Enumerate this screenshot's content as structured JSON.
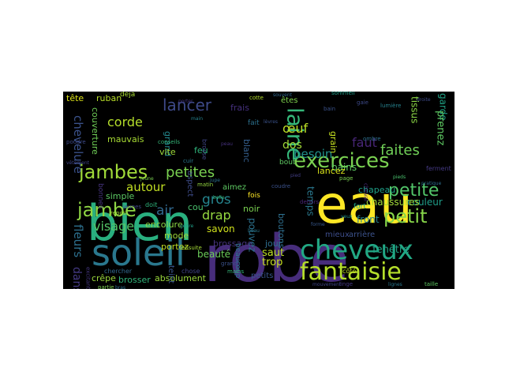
{
  "word_cloud": {
    "background": "#000000",
    "words": [
      {
        "text": "robe",
        "color": "#472d7b"
      },
      {
        "text": "bien",
        "color": "#29af7f"
      },
      {
        "text": "eau",
        "color": "#fde725"
      },
      {
        "text": "soleil",
        "color": "#2a788e"
      },
      {
        "text": "cheveux",
        "color": "#22a884"
      },
      {
        "text": "fantaisie",
        "color": "#b5de2b"
      },
      {
        "text": "exercices",
        "color": "#7ad151"
      },
      {
        "text": "jambes",
        "color": "#a0da39"
      },
      {
        "text": "jambe",
        "color": "#8fd744"
      },
      {
        "text": "petit",
        "color": "#86d549"
      },
      {
        "text": "laine",
        "color": "#35b779"
      },
      {
        "text": "petite",
        "color": "#52c569"
      },
      {
        "text": "lancer",
        "color": "#3e4a89"
      },
      {
        "text": "petites",
        "color": "#7ad151"
      },
      {
        "text": "visage",
        "color": "#54c568"
      },
      {
        "text": "faites",
        "color": "#70cf57"
      },
      {
        "text": "besoin",
        "color": "#21918c"
      },
      {
        "text": "faut",
        "color": "#482677"
      },
      {
        "text": "corde",
        "color": "#b5de2b"
      },
      {
        "text": "autour",
        "color": "#c2df23"
      },
      {
        "text": "gros",
        "color": "#25848e"
      },
      {
        "text": "drap",
        "color": "#95d840"
      },
      {
        "text": "air",
        "color": "#31688e"
      },
      {
        "text": "chevelure",
        "color": "#3b528b"
      },
      {
        "text": "fleurs",
        "color": "#2d708e"
      },
      {
        "text": "danse",
        "color": "#443983"
      },
      {
        "text": "œuf",
        "color": "#bddf26"
      },
      {
        "text": "dos",
        "color": "#a2da37"
      },
      {
        "text": "fenêtre",
        "color": "#20a386"
      },
      {
        "text": "couleur",
        "color": "#1f9e89"
      },
      {
        "text": "chaussures",
        "color": "#a0da39"
      },
      {
        "text": "chapeau",
        "color": "#1fa088"
      },
      {
        "text": "front",
        "color": "#26828e"
      },
      {
        "text": "mieux",
        "color": "#3d4d8a"
      },
      {
        "text": "arrière",
        "color": "#3b528b"
      },
      {
        "text": "pouvez",
        "color": "#2c728e"
      },
      {
        "text": "saut",
        "color": "#bddf26"
      },
      {
        "text": "trop",
        "color": "#c8e020"
      },
      {
        "text": "jour",
        "color": "#2e6e8e"
      },
      {
        "text": "temps",
        "color": "#2a788e"
      },
      {
        "text": "bains",
        "color": "#5ec962"
      },
      {
        "text": "lancez",
        "color": "#d8e219"
      },
      {
        "text": "savon",
        "color": "#d0e11c"
      },
      {
        "text": "noir",
        "color": "#7ad151"
      },
      {
        "text": "beauté",
        "color": "#6ccd5a"
      },
      {
        "text": "brossage",
        "color": "#46337e"
      },
      {
        "text": "absolument",
        "color": "#9bd93c"
      },
      {
        "text": "brosser",
        "color": "#31b57b"
      },
      {
        "text": "crêpe",
        "color": "#9bd93c"
      },
      {
        "text": "petits",
        "color": "#39558c"
      },
      {
        "text": "mode",
        "color": "#9fda3a"
      },
      {
        "text": "portez",
        "color": "#c2df23"
      },
      {
        "text": "encolure",
        "color": "#8bd646"
      },
      {
        "text": "simple",
        "color": "#5cc863"
      },
      {
        "text": "couverture",
        "color": "#70cf57"
      },
      {
        "text": "mauvais",
        "color": "#a8db34"
      },
      {
        "text": "ruban",
        "color": "#b8de29"
      },
      {
        "text": "tête",
        "color": "#dde318"
      },
      {
        "text": "grand",
        "color": "#23888e"
      },
      {
        "text": "vite",
        "color": "#9fda3a"
      },
      {
        "text": "feu",
        "color": "#2fb47c"
      },
      {
        "text": "blanc",
        "color": "#355f8d"
      },
      {
        "text": "aimez",
        "color": "#5ec962"
      },
      {
        "text": "garde",
        "color": "#20a386"
      },
      {
        "text": "tissus",
        "color": "#8bd646"
      },
      {
        "text": "prenez",
        "color": "#5ec962"
      },
      {
        "text": "êtes",
        "color": "#7fd34e"
      },
      {
        "text": "frais",
        "color": "#46307e"
      },
      {
        "text": "grain",
        "color": "#c5e021"
      },
      {
        "text": "boutons",
        "color": "#2e6f8e"
      },
      {
        "text": "teint",
        "color": "#3a548c"
      },
      {
        "text": "aspect",
        "color": "#3e4c8a"
      },
      {
        "text": "cou",
        "color": "#4ac16d"
      },
      {
        "text": "bonnes",
        "color": "#46337e"
      },
      {
        "text": "beaucoup",
        "color": "#2a768e"
      },
      {
        "text": "déjà",
        "color": "#a8db34"
      },
      {
        "text": "brosse",
        "color": "#404688"
      },
      {
        "text": "fait",
        "color": "#2c718e"
      },
      {
        "text": "fois",
        "color": "#fde725"
      },
      {
        "text": "grands",
        "color": "#3b528b"
      },
      {
        "text": "chose",
        "color": "#414487"
      },
      {
        "text": "dehors",
        "color": "#482475"
      },
      {
        "text": "fort",
        "color": "#1fa088"
      },
      {
        "text": "bout",
        "color": "#5ec962"
      },
      {
        "text": "ferment",
        "color": "#443983"
      },
      {
        "text": "côté",
        "color": "#c2df23"
      },
      {
        "text": "page",
        "color": "#7ad151"
      },
      {
        "text": "gaie",
        "color": "#3e4a89"
      },
      {
        "text": "bain",
        "color": "#3b528b"
      },
      {
        "text": "cuir",
        "color": "#2a788e"
      },
      {
        "text": "doit",
        "color": "#2fb47c"
      },
      {
        "text": "cotte",
        "color": "#b5de2b"
      },
      {
        "text": "chercher",
        "color": "#31688e"
      },
      {
        "text": "excitant",
        "color": "#453781"
      },
      {
        "text": "partie",
        "color": "#7ad151"
      },
      {
        "text": "jeunes",
        "color": "#404688"
      },
      {
        "text": "conseils",
        "color": "#35b779"
      },
      {
        "text": "lumière",
        "color": "#26828e"
      },
      {
        "text": "sommeil",
        "color": "#1f9e89"
      },
      {
        "text": "poudre",
        "color": "#3e4a89"
      },
      {
        "text": "repos",
        "color": "#a0da39"
      },
      {
        "text": "cheval",
        "color": "#482878"
      },
      {
        "text": "ombre",
        "color": "#2d708e"
      },
      {
        "text": "linge",
        "color": "#453781"
      },
      {
        "text": "coudre",
        "color": "#3b528b"
      },
      {
        "text": "ensuite",
        "color": "#a5db36"
      },
      {
        "text": "souvent",
        "color": "#31688e"
      },
      {
        "text": "matin",
        "color": "#95d840"
      },
      {
        "text": "jupe",
        "color": "#2c728e"
      },
      {
        "text": "mains",
        "color": "#35b779"
      },
      {
        "text": "taille",
        "color": "#5ec962"
      },
      {
        "text": "yeux",
        "color": "#21918c"
      },
      {
        "text": "pied",
        "color": "#433e85"
      },
      {
        "text": "pieds",
        "color": "#4ac16d"
      },
      {
        "text": "forme",
        "color": "#38588c"
      },
      {
        "text": "genre",
        "color": "#1fa088"
      },
      {
        "text": "jeune",
        "color": "#7ad151"
      },
      {
        "text": "lignes",
        "color": "#2a788e"
      },
      {
        "text": "lèvres",
        "color": "#3b528b"
      },
      {
        "text": "peau",
        "color": "#46327e"
      },
      {
        "text": "mouvement",
        "color": "#404688"
      },
      {
        "text": "belle",
        "color": "#35b779"
      },
      {
        "text": "pratique",
        "color": "#2e6e8e"
      },
      {
        "text": "porter",
        "color": "#453781"
      },
      {
        "text": "beau",
        "color": "#2a788e"
      },
      {
        "text": "droite",
        "color": "#3e4a89"
      },
      {
        "text": "main",
        "color": "#26828e"
      },
      {
        "text": "bras",
        "color": "#2d708e"
      },
      {
        "text": "vêtement",
        "color": "#404688"
      }
    ]
  }
}
